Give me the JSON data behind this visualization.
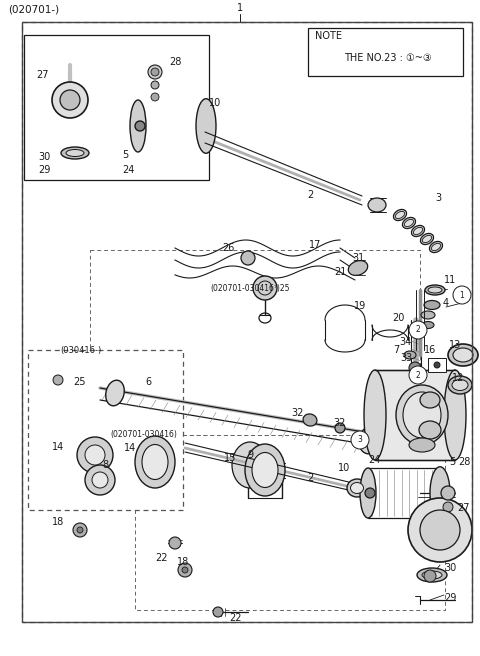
{
  "bg_color": "#ffffff",
  "line_color": "#1a1a1a",
  "fig_width": 4.8,
  "fig_height": 6.56,
  "dpi": 100,
  "header_label": "(020701-)",
  "note_line1": "NOTE",
  "note_line2": "THE NO.23 : ①~③"
}
